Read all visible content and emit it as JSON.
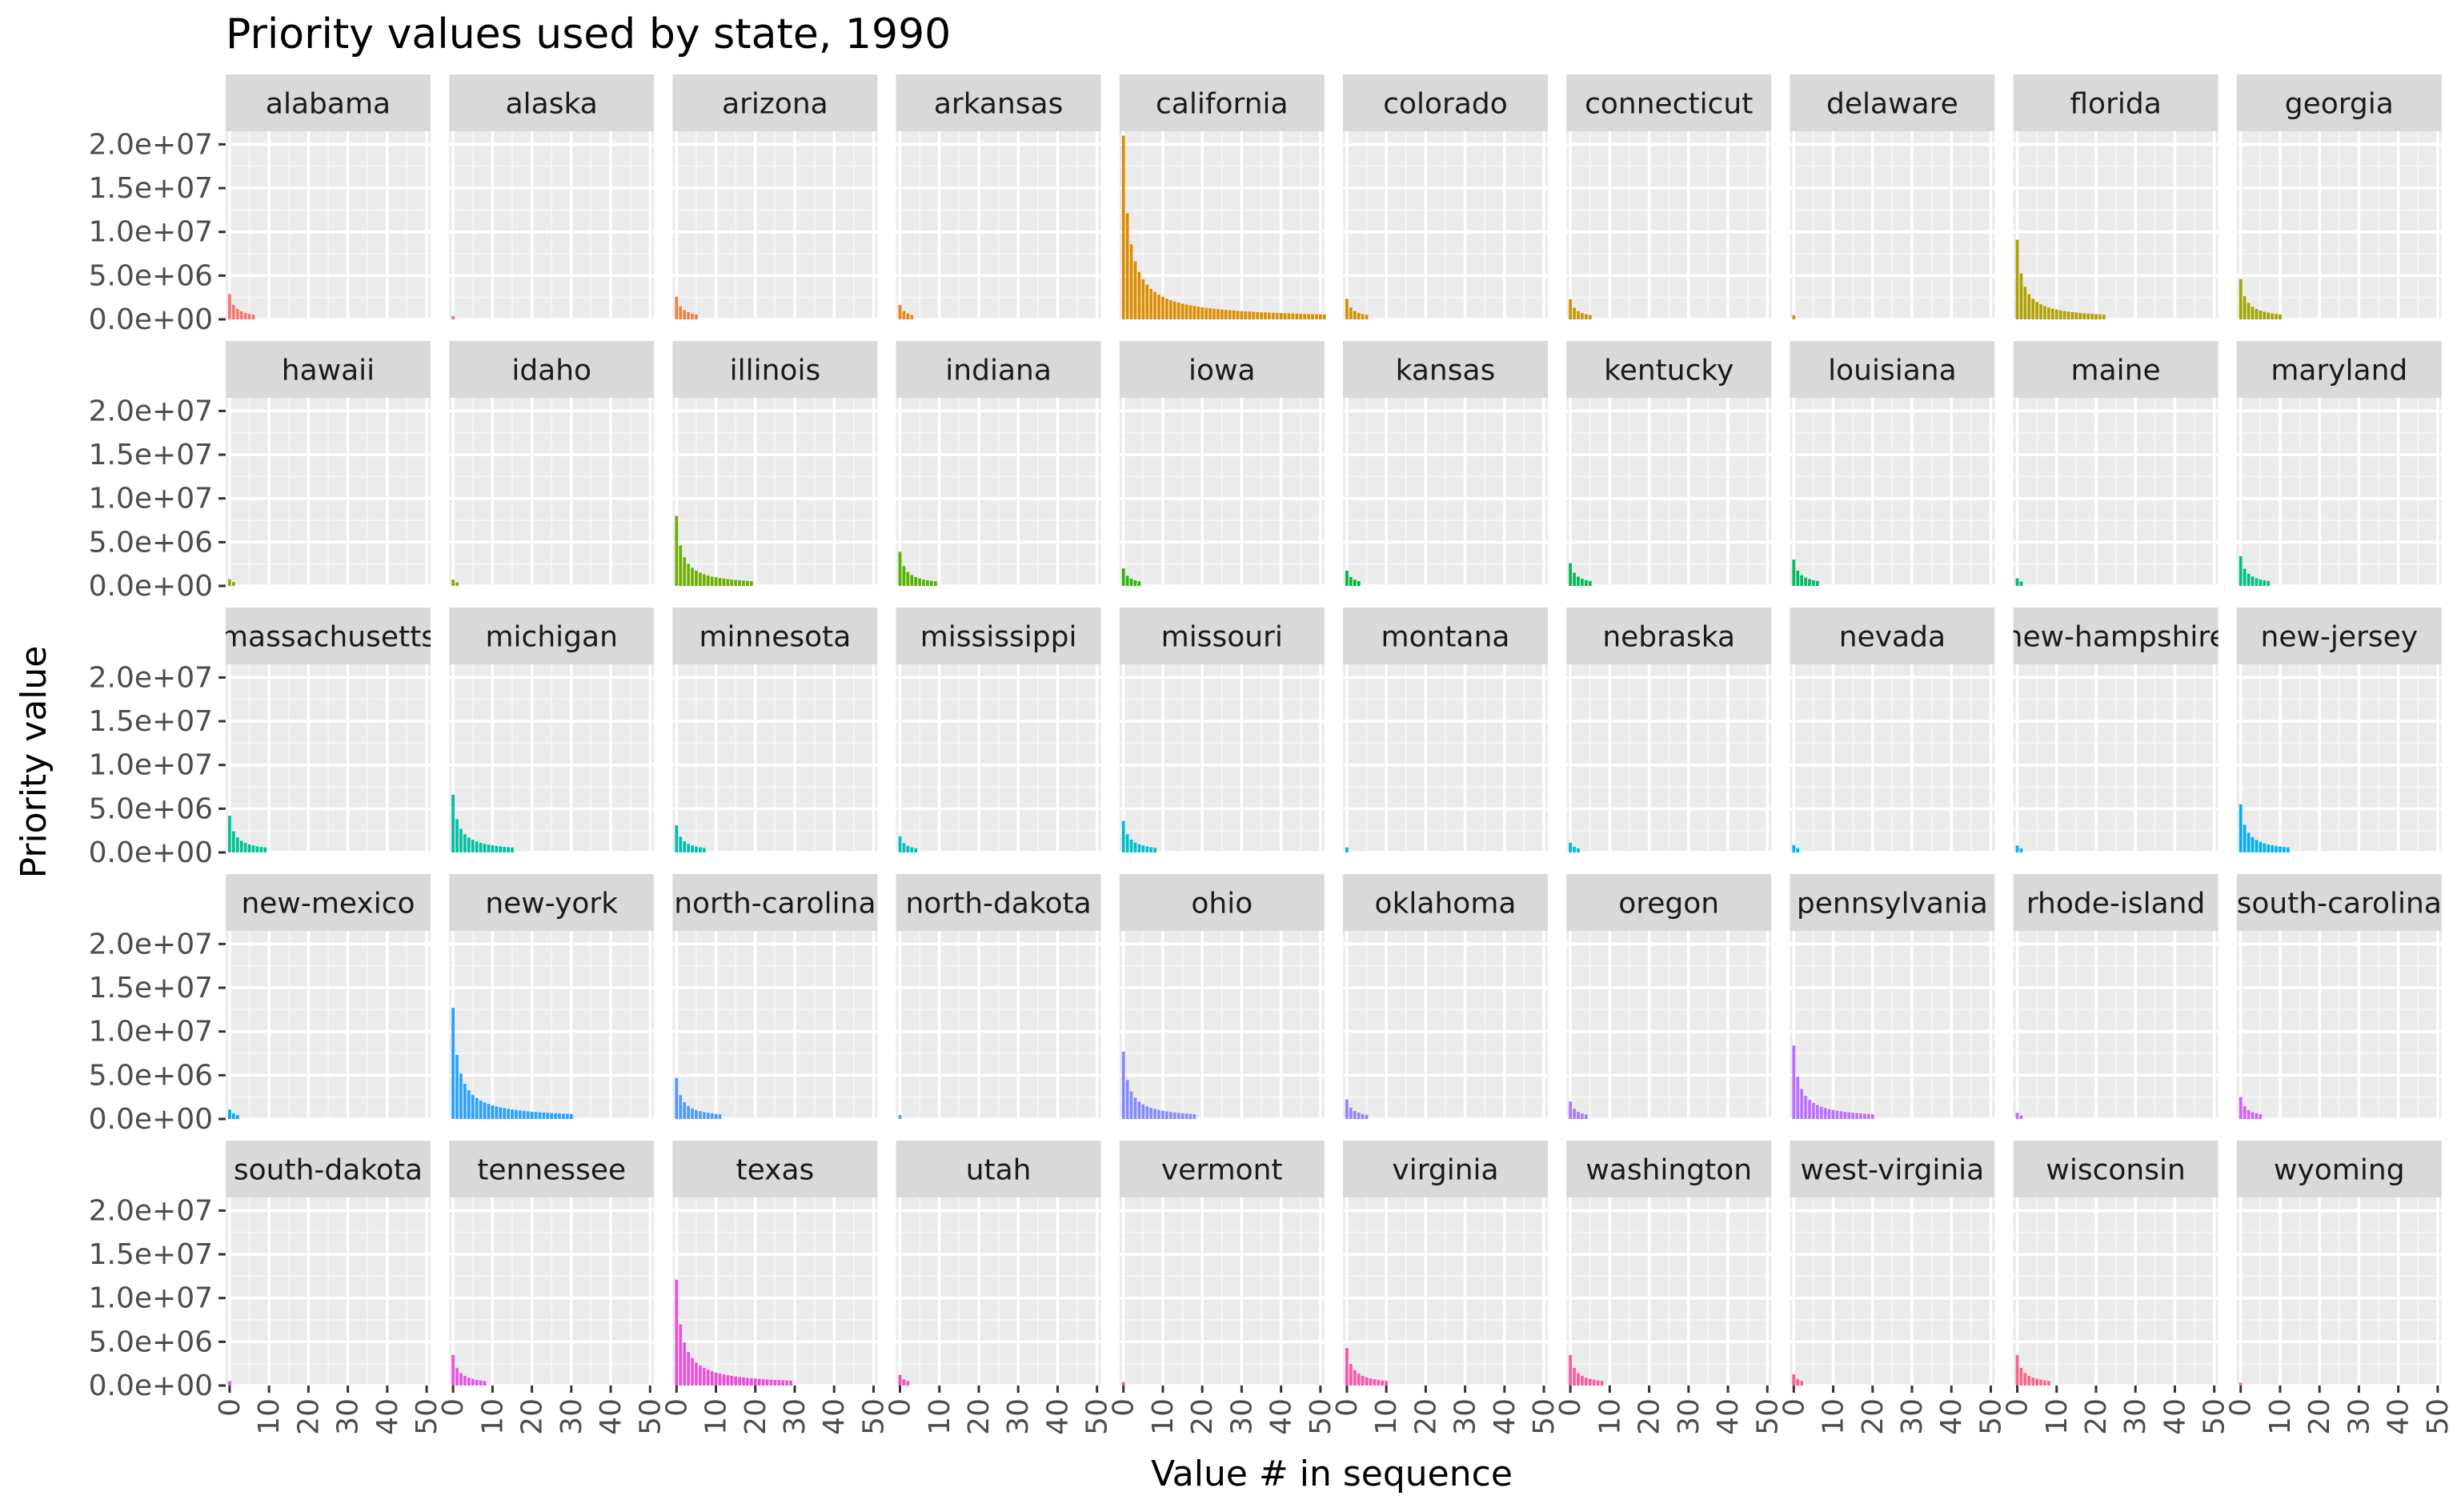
{
  "chart_data": {
    "type": "bar",
    "title": "Priority values used by state, 1990",
    "xlabel": "Value # in sequence",
    "ylabel": "Priority value",
    "facet_layout": {
      "ncol": 10,
      "nrow": 5
    },
    "xlim": [
      -1,
      51
    ],
    "ylim": [
      0,
      21500000
    ],
    "x_ticks": [
      "0",
      "10",
      "20",
      "30",
      "40",
      "50"
    ],
    "y_ticks": [
      "0.0e+00",
      "5.0e+06",
      "1.0e+07",
      "1.5e+07",
      "2.0e+07"
    ],
    "y_tick_values": [
      0,
      5000000,
      10000000,
      15000000,
      20000000
    ],
    "grid": true,
    "panel_background": "#ebebeb",
    "strip_background": "#d9d9d9",
    "panels": [
      {
        "label": "alabama",
        "display": "alabama",
        "color": "#F8766D",
        "first": 2900000,
        "n": 6
      },
      {
        "label": "alaska",
        "display": "alaska",
        "color": "#F37B59",
        "first": 390000,
        "n": 0
      },
      {
        "label": "arizona",
        "display": "arizona",
        "color": "#ED8141",
        "first": 2600000,
        "n": 5
      },
      {
        "label": "arkansas",
        "display": "arkansas",
        "color": "#E7861B",
        "first": 1650000,
        "n": 3
      },
      {
        "label": "california",
        "display": "california",
        "color": "#DD8D00",
        "first": 21000000,
        "n": 51
      },
      {
        "label": "colorado",
        "display": "colorado",
        "color": "#D39200",
        "first": 2350000,
        "n": 5
      },
      {
        "label": "connecticut",
        "display": "connecticut",
        "color": "#C89700",
        "first": 2300000,
        "n": 5
      },
      {
        "label": "delaware",
        "display": "delaware",
        "color": "#BB9D00",
        "first": 470000,
        "n": 0
      },
      {
        "label": "florida",
        "display": "florida",
        "color": "#AFA100",
        "first": 9100000,
        "n": 22
      },
      {
        "label": "georgia",
        "display": "georgia",
        "color": "#A1A500",
        "first": 4600000,
        "n": 10
      },
      {
        "label": "hawaii",
        "display": "hawaii",
        "color": "#92AA00",
        "first": 780000,
        "n": 1
      },
      {
        "label": "idaho",
        "display": "idaho",
        "color": "#81AD00",
        "first": 710000,
        "n": 1
      },
      {
        "label": "illinois",
        "display": "illinois",
        "color": "#6BB100",
        "first": 8000000,
        "n": 19
      },
      {
        "label": "indiana",
        "display": "indiana",
        "color": "#52B400",
        "first": 3900000,
        "n": 9
      },
      {
        "label": "iowa",
        "display": "iowa",
        "color": "#2EB700",
        "first": 2000000,
        "n": 4
      },
      {
        "label": "kansas",
        "display": "kansas",
        "color": "#00B935",
        "first": 1750000,
        "n": 3
      },
      {
        "label": "kentucky",
        "display": "kentucky",
        "color": "#00BB4E",
        "first": 2600000,
        "n": 5
      },
      {
        "label": "louisiana",
        "display": "louisiana",
        "color": "#00BC62",
        "first": 3000000,
        "n": 6
      },
      {
        "label": "maine",
        "display": "maine",
        "color": "#00BE73",
        "first": 870000,
        "n": 1
      },
      {
        "label": "maryland",
        "display": "maryland",
        "color": "#00BF84",
        "first": 3400000,
        "n": 7
      },
      {
        "label": "massachusetts",
        "display": "massachusetts",
        "color": "#00C094",
        "first": 4200000,
        "n": 9
      },
      {
        "label": "michigan",
        "display": "michigan",
        "color": "#00C0A3",
        "first": 6600000,
        "n": 15
      },
      {
        "label": "minnesota",
        "display": "minnesota",
        "color": "#00C0B1",
        "first": 3100000,
        "n": 7
      },
      {
        "label": "mississippi",
        "display": "mississippi",
        "color": "#00BFC0",
        "first": 1850000,
        "n": 4
      },
      {
        "label": "missouri",
        "display": "missouri",
        "color": "#00BECD",
        "first": 3600000,
        "n": 8
      },
      {
        "label": "montana",
        "display": "montana",
        "color": "#00BDD9",
        "first": 570000,
        "n": 0
      },
      {
        "label": "nebraska",
        "display": "nebraska",
        "color": "#00BAE4",
        "first": 1120000,
        "n": 2
      },
      {
        "label": "nevada",
        "display": "nevada",
        "color": "#00B7EE",
        "first": 850000,
        "n": 1
      },
      {
        "label": "new-hampshire",
        "display": "new-hampshire",
        "color": "#00B3F6",
        "first": 780000,
        "n": 1
      },
      {
        "label": "new-jersey",
        "display": "new-jersey",
        "color": "#00AEFA",
        "first": 5500000,
        "n": 12
      },
      {
        "label": "new-mexico",
        "display": "new-mexico",
        "color": "#00A9FF",
        "first": 1070000,
        "n": 2
      },
      {
        "label": "new-york",
        "display": "new-york",
        "color": "#28A3FF",
        "first": 12700000,
        "n": 30
      },
      {
        "label": "north-carolina",
        "display": "north-carolina",
        "color": "#4F9BFF",
        "first": 4700000,
        "n": 11
      },
      {
        "label": "north-dakota",
        "display": "north-dakota",
        "color": "#6C94FF",
        "first": 450000,
        "n": 0
      },
      {
        "label": "ohio",
        "display": "ohio",
        "color": "#858BFF",
        "first": 7700000,
        "n": 18
      },
      {
        "label": "oklahoma",
        "display": "oklahoma",
        "color": "#9A82FF",
        "first": 2250000,
        "n": 5
      },
      {
        "label": "oregon",
        "display": "oregon",
        "color": "#AC79FF",
        "first": 2000000,
        "n": 4
      },
      {
        "label": "pennsylvania",
        "display": "pennsylvania",
        "color": "#BC70FF",
        "first": 8400000,
        "n": 20
      },
      {
        "label": "rhode-island",
        "display": "rhode-island",
        "color": "#CA67FF",
        "first": 710000,
        "n": 1
      },
      {
        "label": "south-carolina",
        "display": "south-carolina",
        "color": "#D55FF7",
        "first": 2500000,
        "n": 5
      },
      {
        "label": "south-dakota",
        "display": "south-dakota",
        "color": "#DF59EE",
        "first": 500000,
        "n": 0
      },
      {
        "label": "tennessee",
        "display": "tennessee",
        "color": "#E754E3",
        "first": 3500000,
        "n": 8
      },
      {
        "label": "texas",
        "display": "texas",
        "color": "#ED50D8",
        "first": 12100000,
        "n": 29
      },
      {
        "label": "utah",
        "display": "utah",
        "color": "#F24FCB",
        "first": 1230000,
        "n": 2
      },
      {
        "label": "vermont",
        "display": "vermont",
        "color": "#F652BE",
        "first": 400000,
        "n": 0
      },
      {
        "label": "virginia",
        "display": "virginia",
        "color": "#F956B0",
        "first": 4300000,
        "n": 10
      },
      {
        "label": "washington",
        "display": "washington",
        "color": "#FA5BA2",
        "first": 3500000,
        "n": 8
      },
      {
        "label": "west-virginia",
        "display": "west-virginia",
        "color": "#FB6093",
        "first": 1280000,
        "n": 2
      },
      {
        "label": "wisconsin",
        "display": "wisconsin",
        "color": "#FA6684",
        "first": 3500000,
        "n": 8
      },
      {
        "label": "wyoming",
        "display": "wyoming",
        "color": "#F86E75",
        "first": 330000,
        "n": 0
      }
    ]
  }
}
